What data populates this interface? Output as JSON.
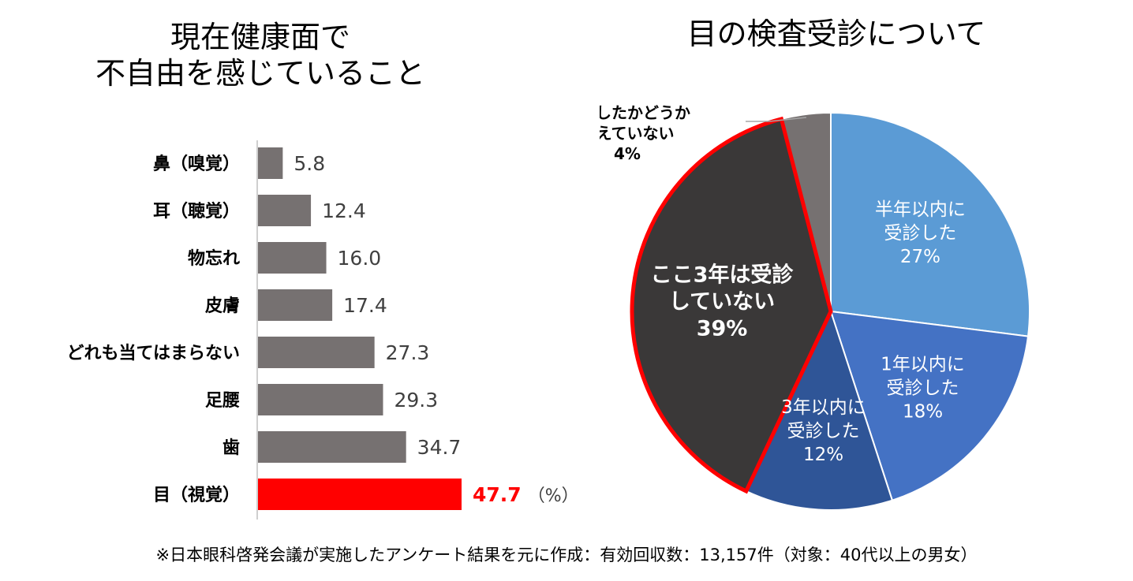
{
  "bar_title": [
    "現在健康面で",
    "不自由を感じていること"
  ],
  "pie_title": "目の検査受診について",
  "footnote": "※日本眼科啓発会議が実施したアンケート結果を元に作成：有効回収数：13,157件（対象：40代以上の男女）",
  "colors": {
    "bar_default": "#767171",
    "bar_highlight": "#ff0000",
    "pie_outline_highlight": "#ff0000"
  },
  "chart_data": [
    {
      "type": "bar",
      "orientation": "horizontal",
      "title": "現在健康面で 不自由を感じていること",
      "categories": [
        "鼻（嗅覚）",
        "耳（聴覚）",
        "物忘れ",
        "皮膚",
        "どれも当てはまらない",
        "足腰",
        "歯",
        "目（視覚）"
      ],
      "values": [
        5.8,
        12.4,
        16.0,
        17.4,
        27.3,
        29.3,
        34.7,
        47.7
      ],
      "value_labels": [
        "5.8",
        "12.4",
        "16.0",
        "17.4",
        "27.3",
        "29.3",
        "34.7",
        "47.7"
      ],
      "unit_label": "（%）",
      "highlight_index": 7,
      "xlim": [
        0,
        100
      ],
      "grid": false
    },
    {
      "type": "pie",
      "title": "目の検査受診について",
      "slices": [
        {
          "lines": [
            "半年以内に",
            "受診した"
          ],
          "pct_label": "27%",
          "value": 27,
          "color": "#5b9bd5",
          "text_color": "#ffffff"
        },
        {
          "lines": [
            "1年以内に",
            "受診した"
          ],
          "pct_label": "18%",
          "value": 18,
          "color": "#4472c4",
          "text_color": "#ffffff"
        },
        {
          "lines": [
            "3年以内に",
            "受診した"
          ],
          "pct_label": "12%",
          "value": 12,
          "color": "#2f5597",
          "text_color": "#ffffff"
        },
        {
          "lines": [
            "ここ3年は受診",
            "していない"
          ],
          "pct_label": "39%",
          "value": 39,
          "color": "#3a3838",
          "text_color": "#ffffff",
          "highlight": true
        },
        {
          "lines": [
            "受診したかどうか",
            "覚えていない"
          ],
          "pct_label": "4%",
          "value": 4,
          "color": "#767171",
          "text_color": "#000000",
          "callout": true
        }
      ]
    }
  ]
}
